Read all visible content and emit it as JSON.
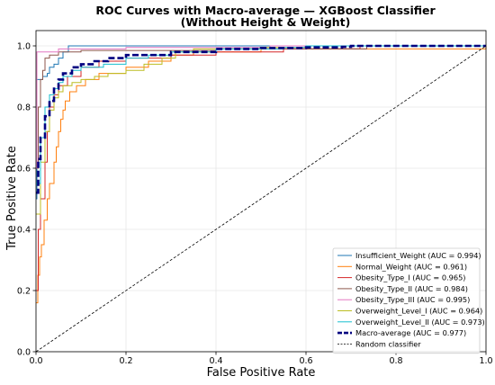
{
  "chart_data": {
    "type": "line",
    "title": "ROC Curves with Macro-average — XGBoost Classifier",
    "subtitle": "(Without Height & Weight)",
    "xlabel": "False Positive Rate",
    "ylabel": "True Positive Rate",
    "xlim": [
      0.0,
      1.0
    ],
    "ylim": [
      0.0,
      1.05
    ],
    "x_ticks": [
      "0.0",
      "0.2",
      "0.4",
      "0.6",
      "0.8",
      "1.0"
    ],
    "y_ticks": [
      "0.0",
      "0.2",
      "0.4",
      "0.6",
      "0.8",
      "1.0"
    ],
    "grid": true,
    "legend_position": "lower-right",
    "series": [
      {
        "name": "Insufficient_Weight (AUC = 0.994)",
        "color": "#1f77b4",
        "style": "solid",
        "points": [
          [
            0,
            0.5
          ],
          [
            0.002,
            0.89
          ],
          [
            0.01,
            0.89
          ],
          [
            0.015,
            0.9
          ],
          [
            0.025,
            0.91
          ],
          [
            0.03,
            0.93
          ],
          [
            0.04,
            0.94
          ],
          [
            0.05,
            0.96
          ],
          [
            0.06,
            0.98
          ],
          [
            0.07,
            0.98
          ],
          [
            0.072,
            1.0
          ],
          [
            1.0,
            1.0
          ]
        ]
      },
      {
        "name": "Normal_Weight (AUC = 0.961)",
        "color": "#ff7f0e",
        "style": "solid",
        "points": [
          [
            0,
            0.16
          ],
          [
            0.004,
            0.25
          ],
          [
            0.008,
            0.31
          ],
          [
            0.012,
            0.35
          ],
          [
            0.018,
            0.43
          ],
          [
            0.025,
            0.5
          ],
          [
            0.03,
            0.55
          ],
          [
            0.04,
            0.62
          ],
          [
            0.045,
            0.67
          ],
          [
            0.05,
            0.72
          ],
          [
            0.055,
            0.76
          ],
          [
            0.06,
            0.79
          ],
          [
            0.065,
            0.82
          ],
          [
            0.075,
            0.85
          ],
          [
            0.09,
            0.87
          ],
          [
            0.11,
            0.89
          ],
          [
            0.14,
            0.91
          ],
          [
            0.2,
            0.93
          ],
          [
            0.25,
            0.95
          ],
          [
            0.3,
            0.97
          ],
          [
            0.35,
            0.98
          ],
          [
            0.5,
            0.99
          ],
          [
            1.0,
            1.0
          ]
        ]
      },
      {
        "name": "Obesity_Type_I (AUC = 0.965)",
        "color": "#d62728",
        "style": "solid",
        "points": [
          [
            0,
            0.2
          ],
          [
            0.005,
            0.4
          ],
          [
            0.01,
            0.5
          ],
          [
            0.02,
            0.62
          ],
          [
            0.025,
            0.72
          ],
          [
            0.03,
            0.8
          ],
          [
            0.04,
            0.84
          ],
          [
            0.05,
            0.87
          ],
          [
            0.07,
            0.9
          ],
          [
            0.1,
            0.93
          ],
          [
            0.14,
            0.95
          ],
          [
            0.2,
            0.96
          ],
          [
            0.3,
            0.97
          ],
          [
            0.4,
            0.98
          ],
          [
            0.55,
            0.99
          ],
          [
            0.7,
            0.99
          ],
          [
            0.72,
            1.0
          ],
          [
            1.0,
            1.0
          ]
        ]
      },
      {
        "name": "Obesity_Type_II (AUC = 0.984)",
        "color": "#8c564b",
        "style": "solid",
        "points": [
          [
            0,
            0.6
          ],
          [
            0.005,
            0.8
          ],
          [
            0.01,
            0.89
          ],
          [
            0.015,
            0.92
          ],
          [
            0.02,
            0.96
          ],
          [
            0.03,
            0.97
          ],
          [
            0.05,
            0.98
          ],
          [
            0.1,
            0.985
          ],
          [
            0.4,
            0.99
          ],
          [
            0.73,
            0.99
          ],
          [
            0.735,
            1.0
          ],
          [
            1.0,
            1.0
          ]
        ]
      },
      {
        "name": "Obesity_Type_III (AUC = 0.995)",
        "color": "#e377c2",
        "style": "solid",
        "points": [
          [
            0,
            0.6
          ],
          [
            0.002,
            0.98
          ],
          [
            0.05,
            0.99
          ],
          [
            0.2,
            0.995
          ],
          [
            0.5,
            0.995
          ],
          [
            0.52,
            1.0
          ],
          [
            1.0,
            1.0
          ]
        ]
      },
      {
        "name": "Overweight_Level_I (AUC = 0.964)",
        "color": "#bcbd22",
        "style": "solid",
        "points": [
          [
            0,
            0.45
          ],
          [
            0.01,
            0.62
          ],
          [
            0.02,
            0.72
          ],
          [
            0.03,
            0.79
          ],
          [
            0.04,
            0.83
          ],
          [
            0.05,
            0.85
          ],
          [
            0.06,
            0.87
          ],
          [
            0.08,
            0.88
          ],
          [
            0.1,
            0.89
          ],
          [
            0.13,
            0.9
          ],
          [
            0.16,
            0.91
          ],
          [
            0.2,
            0.92
          ],
          [
            0.24,
            0.94
          ],
          [
            0.28,
            0.96
          ],
          [
            0.31,
            0.98
          ],
          [
            0.35,
            0.99
          ],
          [
            0.5,
            0.995
          ],
          [
            0.6,
            1.0
          ],
          [
            1.0,
            1.0
          ]
        ]
      },
      {
        "name": "Overweight_Level_II (AUC = 0.973)",
        "color": "#17becf",
        "style": "solid",
        "points": [
          [
            0,
            0.55
          ],
          [
            0.01,
            0.7
          ],
          [
            0.02,
            0.8
          ],
          [
            0.03,
            0.84
          ],
          [
            0.04,
            0.86
          ],
          [
            0.05,
            0.88
          ],
          [
            0.06,
            0.9
          ],
          [
            0.08,
            0.92
          ],
          [
            0.1,
            0.93
          ],
          [
            0.15,
            0.94
          ],
          [
            0.2,
            0.96
          ],
          [
            0.25,
            0.97
          ],
          [
            0.3,
            0.98
          ],
          [
            0.4,
            0.99
          ],
          [
            0.55,
            0.995
          ],
          [
            0.6,
            1.0
          ],
          [
            1.0,
            1.0
          ]
        ]
      },
      {
        "name": "Macro-average (AUC = 0.977)",
        "color": "#000080",
        "style": "dashed-bold",
        "points": [
          [
            0,
            0.52
          ],
          [
            0.005,
            0.63
          ],
          [
            0.01,
            0.7
          ],
          [
            0.02,
            0.77
          ],
          [
            0.03,
            0.82
          ],
          [
            0.04,
            0.86
          ],
          [
            0.05,
            0.89
          ],
          [
            0.06,
            0.91
          ],
          [
            0.08,
            0.93
          ],
          [
            0.1,
            0.94
          ],
          [
            0.13,
            0.95
          ],
          [
            0.16,
            0.96
          ],
          [
            0.2,
            0.97
          ],
          [
            0.3,
            0.98
          ],
          [
            0.4,
            0.99
          ],
          [
            0.5,
            0.993
          ],
          [
            0.6,
            0.995
          ],
          [
            0.68,
            0.997
          ],
          [
            0.7,
            1.0
          ],
          [
            1.0,
            1.0
          ]
        ]
      },
      {
        "name": "Random classifier",
        "color": "#000000",
        "style": "dashed-thin",
        "points": [
          [
            0,
            0
          ],
          [
            1,
            1
          ]
        ]
      }
    ]
  }
}
